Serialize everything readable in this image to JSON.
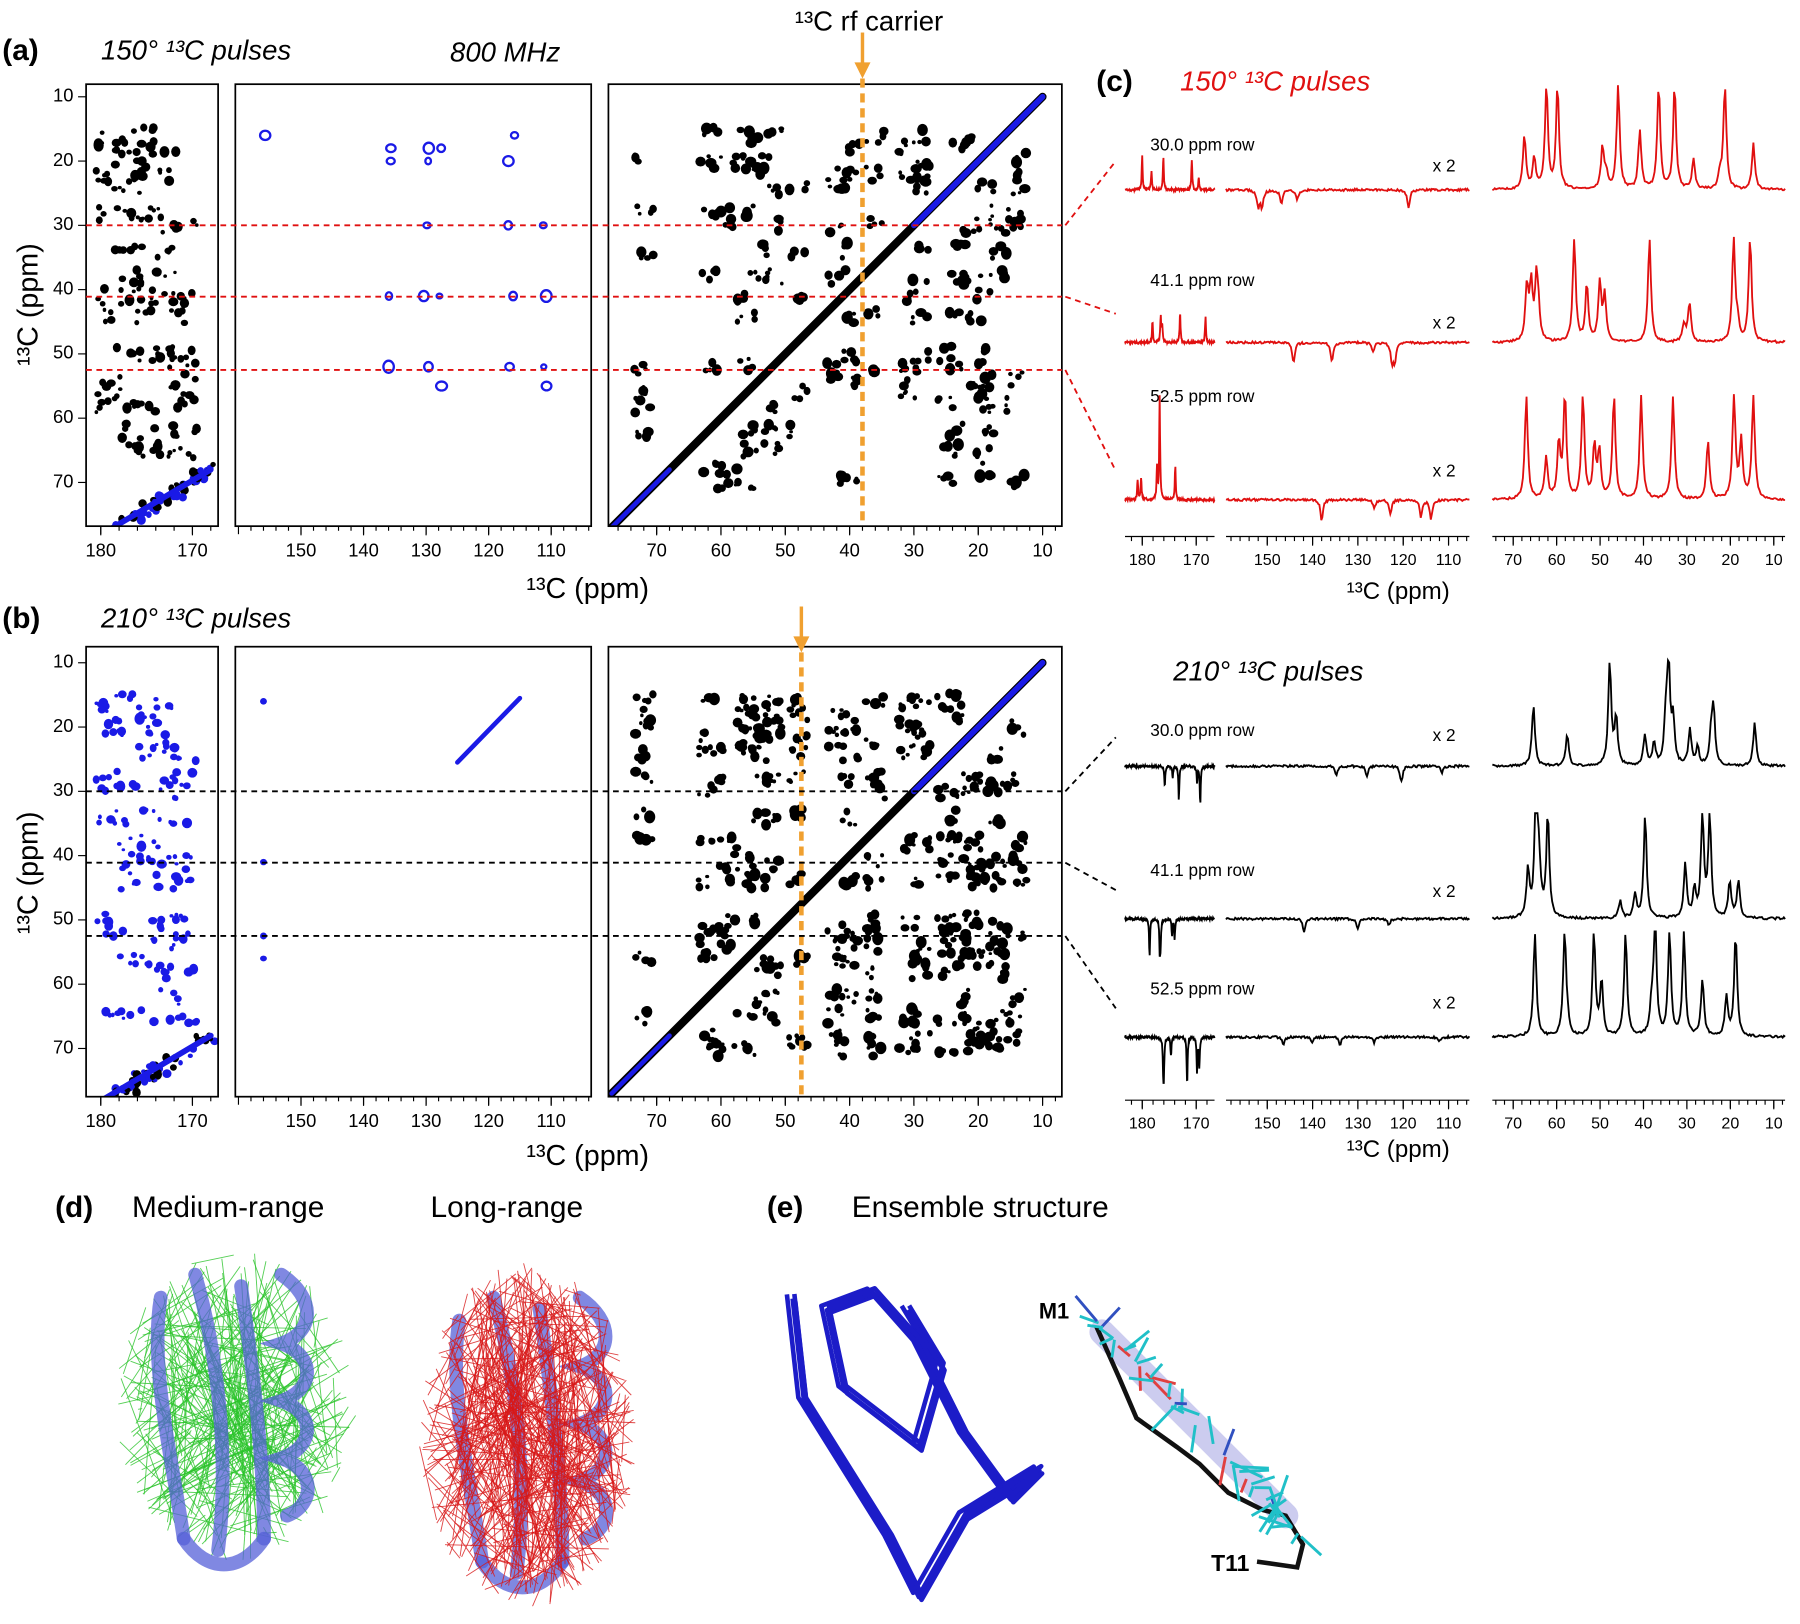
{
  "panel_a": {
    "label": "(a)",
    "title": "150° ¹³C pulses",
    "field": "800 MHz",
    "carrier": "¹³C rf carrier",
    "carrier_ppm": 38,
    "x_label": "¹³C (ppm)",
    "y_label": "¹³C (ppm)"
  },
  "panel_b": {
    "label": "(b)",
    "title": "210° ¹³C pulses",
    "carrier_ppm": 47.5,
    "x_label": "¹³C (ppm)",
    "y_label": "¹³C (ppm)"
  },
  "panel_c": {
    "label": "(c)",
    "title": "150° ¹³C pulses",
    "x_label": "¹³C (ppm)",
    "rows": [
      {
        "label": "30.0 ppm row",
        "scale": "x 2"
      },
      {
        "label": "41.1 ppm row",
        "scale": "x 2"
      },
      {
        "label": "52.5 ppm row",
        "scale": "x 2"
      }
    ]
  },
  "panel_c2": {
    "title": "210° ¹³C pulses",
    "x_label": "¹³C (ppm)",
    "rows": [
      {
        "label": "30.0 ppm row",
        "scale": "x 2"
      },
      {
        "label": "41.1 ppm row",
        "scale": "x 2"
      },
      {
        "label": "52.5 ppm row",
        "scale": "x 2"
      }
    ]
  },
  "axes": {
    "yticks": [
      10,
      20,
      30,
      40,
      50,
      60,
      70
    ],
    "xticks": [
      [
        180,
        170
      ],
      [
        150,
        140,
        130,
        120,
        110
      ],
      [
        70,
        60,
        50,
        40,
        30,
        20,
        10
      ]
    ]
  },
  "panel_d": {
    "label": "(d)",
    "left": "Medium-range",
    "right": "Long-range"
  },
  "panel_e": {
    "label": "(e)",
    "title": "Ensemble structure",
    "n_term": "M1",
    "c_term": "T11"
  }
}
